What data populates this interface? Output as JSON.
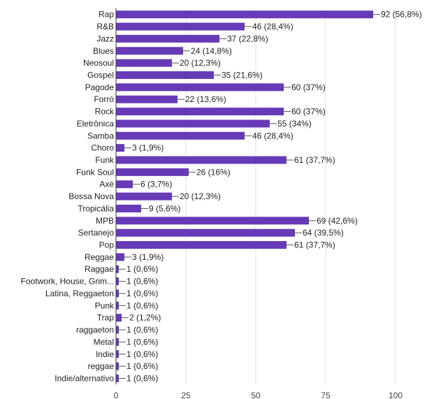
{
  "chart_data": {
    "type": "bar",
    "orientation": "horizontal",
    "categories": [
      "Rap",
      "R&B",
      "Jazz",
      "Blues",
      "Neosoul",
      "Gospel",
      "Pagode",
      "Forró",
      "Rock",
      "Eletrônica",
      "Samba",
      "Choro",
      "Funk",
      "Funk Soul",
      "Axé",
      "Bossa Nova",
      "Tropicália",
      "MPB",
      "Sertanejo",
      "Pop",
      "Reggae",
      "Raggae",
      "Footwork, House, Grim...",
      "Latina, Reggaeton",
      "Punk",
      "Trap",
      "raggaeton",
      "Metal",
      "Indie",
      "reggae",
      "Indie/alternativo"
    ],
    "values": [
      92,
      46,
      37,
      24,
      20,
      35,
      60,
      22,
      60,
      55,
      46,
      3,
      61,
      26,
      6,
      20,
      9,
      69,
      64,
      61,
      3,
      1,
      1,
      1,
      1,
      2,
      1,
      1,
      1,
      1,
      1
    ],
    "value_labels": [
      "92 (56,8%)",
      "46 (28,4%)",
      "37 (22,8%)",
      "24 (14,8%)",
      "20 (12,3%)",
      "35 (21,6%)",
      "60 (37%)",
      "22 (13,6%)",
      "60 (37%)",
      "55 (34%)",
      "46 (28,4%)",
      "3 (1,9%)",
      "61 (37,7%)",
      "26 (16%)",
      "6 (3,7%)",
      "20 (12,3%)",
      "9 (5,6%)",
      "69 (42,6%)",
      "64 (39,5%)",
      "61 (37,7%)",
      "3 (1,9%)",
      "1 (0,6%)",
      "1 (0,6%)",
      "1 (0,6%)",
      "1 (0,6%)",
      "2 (1,2%)",
      "1 (0,6%)",
      "1 (0,6%)",
      "1 (0,6%)",
      "1 (0,6%)",
      "1 (0,6%)"
    ],
    "xticks": [
      0,
      25,
      50,
      75,
      100
    ],
    "xtick_labels": [
      "0",
      "25",
      "50",
      "75",
      "100"
    ],
    "xlim": [
      0,
      100
    ],
    "grid": true,
    "legend": "none",
    "bar_color": "#673ab7",
    "grid_color": "#e0e0e0",
    "axis_color": "#333333"
  }
}
